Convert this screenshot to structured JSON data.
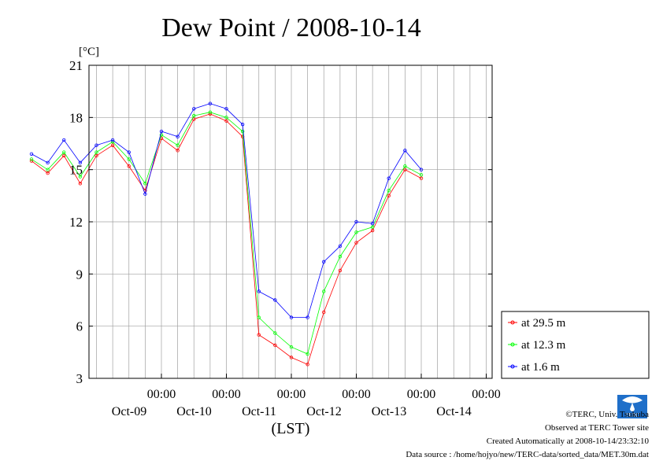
{
  "chart_data": {
    "type": "line",
    "title": "Dew Point / 2008-10-14",
    "ylabel": "[°C]",
    "xlabel": "(LST)",
    "ylim": [
      3,
      21
    ],
    "yticks": [
      "3",
      "6",
      "9",
      "12",
      "15",
      "18",
      "21"
    ],
    "xticks": [
      {
        "time": "00:00",
        "date": "Oct-09"
      },
      {
        "time": "00:00",
        "date": "Oct-10"
      },
      {
        "time": "00:00",
        "date": "Oct-11"
      },
      {
        "time": "00:00",
        "date": "Oct-12"
      },
      {
        "time": "00:00",
        "date": "Oct-13"
      },
      {
        "time": "00:00",
        "date": "Oct-14"
      }
    ],
    "x_days": [
      0.0,
      0.25,
      0.5,
      0.75,
      1.0,
      1.25,
      1.5,
      1.75,
      2.0,
      2.25,
      2.5,
      2.75,
      3.0,
      3.25,
      3.5,
      3.75,
      4.0,
      4.25,
      4.5,
      4.75,
      5.0,
      5.25,
      5.5,
      5.75,
      6.0
    ],
    "grid": true,
    "legend_position": "right",
    "series": [
      {
        "name": "at 29.5 m",
        "color": "#ff0000",
        "values": [
          15.5,
          14.8,
          15.8,
          14.2,
          15.8,
          16.4,
          15.2,
          13.8,
          16.8,
          16.1,
          17.9,
          18.2,
          17.8,
          16.9,
          5.5,
          4.9,
          4.2,
          3.8,
          6.8,
          9.2,
          10.8,
          11.5,
          13.5,
          15.0,
          14.5
        ]
      },
      {
        "name": "at 12.3 m",
        "color": "#00ff00",
        "values": [
          15.6,
          15.0,
          16.0,
          14.6,
          16.0,
          16.6,
          15.6,
          14.2,
          17.0,
          16.4,
          18.1,
          18.3,
          18.0,
          17.2,
          6.5,
          5.6,
          4.8,
          4.4,
          8.0,
          10.0,
          11.4,
          11.7,
          13.8,
          15.2,
          14.7
        ]
      },
      {
        "name": "at 1.6 m",
        "color": "#0000ff",
        "values": [
          15.9,
          15.4,
          16.7,
          15.4,
          16.4,
          16.7,
          16.0,
          13.6,
          17.2,
          16.9,
          18.5,
          18.8,
          18.5,
          17.6,
          8.0,
          7.5,
          6.5,
          6.5,
          9.7,
          10.6,
          12.0,
          11.9,
          14.5,
          16.1,
          15.0
        ]
      }
    ]
  },
  "footer": {
    "copyright": "©TERC, Univ. Tsukuba",
    "observed": "Observed at TERC Tower site",
    "created": "Created Automatically at 2008-10-14/23:32:10",
    "source": "Data source : /home/hojyo/new/TERC-data/sorted_data/MET.30m.dat",
    "logo_text": "TERC"
  }
}
